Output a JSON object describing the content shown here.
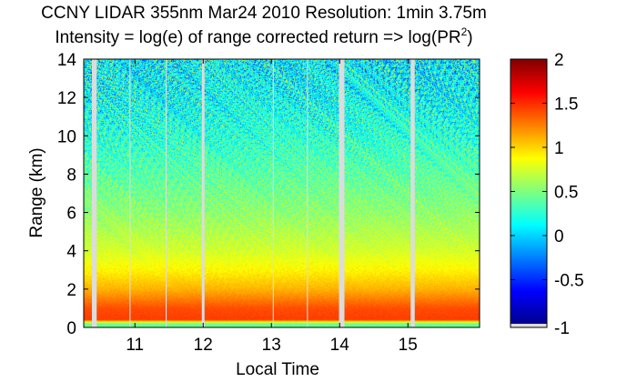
{
  "chart_data": {
    "type": "heatmap",
    "title": "CCNY LIDAR 355nm Mar24 2010 Resolution: 1min 3.75m",
    "subtitle_prefix": "Intensity = log(e) of range corrected return => log(PR",
    "subtitle_sup": "2",
    "subtitle_suffix": ")",
    "xlabel": "Local Time",
    "ylabel": "Range (km)",
    "xlim": [
      10.25,
      16.05
    ],
    "ylim": [
      0,
      14
    ],
    "xticks": [
      11,
      12,
      13,
      14,
      15
    ],
    "yticks": [
      0,
      2,
      4,
      6,
      8,
      10,
      12,
      14
    ],
    "colorbar": {
      "range": [
        -1,
        2
      ],
      "ticks": [
        -1,
        -0.5,
        0,
        0.5,
        1,
        1.5,
        2
      ],
      "colormap": "jet",
      "nodata_color": "#dcdcdc"
    },
    "gaps": [
      {
        "x": 10.37,
        "width_hours": 0.07
      },
      {
        "x": 10.92,
        "width_hours": 0.015
      },
      {
        "x": 11.45,
        "width_hours": 0.015
      },
      {
        "x": 11.98,
        "width_hours": 0.04
      },
      {
        "x": 13.02,
        "width_hours": 0.015
      },
      {
        "x": 13.52,
        "width_hours": 0.015
      },
      {
        "x": 13.99,
        "width_hours": 0.08
      },
      {
        "x": 15.04,
        "width_hours": 0.06
      }
    ],
    "intensity_profile": [
      {
        "range_km": 0.0,
        "value": 0.45
      },
      {
        "range_km": 0.2,
        "value": 0.45
      },
      {
        "range_km": 0.4,
        "value": 1.45
      },
      {
        "range_km": 1.0,
        "value": 1.4
      },
      {
        "range_km": 1.5,
        "value": 1.25
      },
      {
        "range_km": 2.0,
        "value": 1.1
      },
      {
        "range_km": 3.0,
        "value": 0.9
      },
      {
        "range_km": 4.0,
        "value": 0.75
      },
      {
        "range_km": 6.0,
        "value": 0.55
      },
      {
        "range_km": 8.0,
        "value": 0.4
      },
      {
        "range_km": 10.0,
        "value": 0.25
      },
      {
        "range_km": 12.0,
        "value": 0.15
      },
      {
        "range_km": 14.0,
        "value": 0.1
      }
    ]
  }
}
